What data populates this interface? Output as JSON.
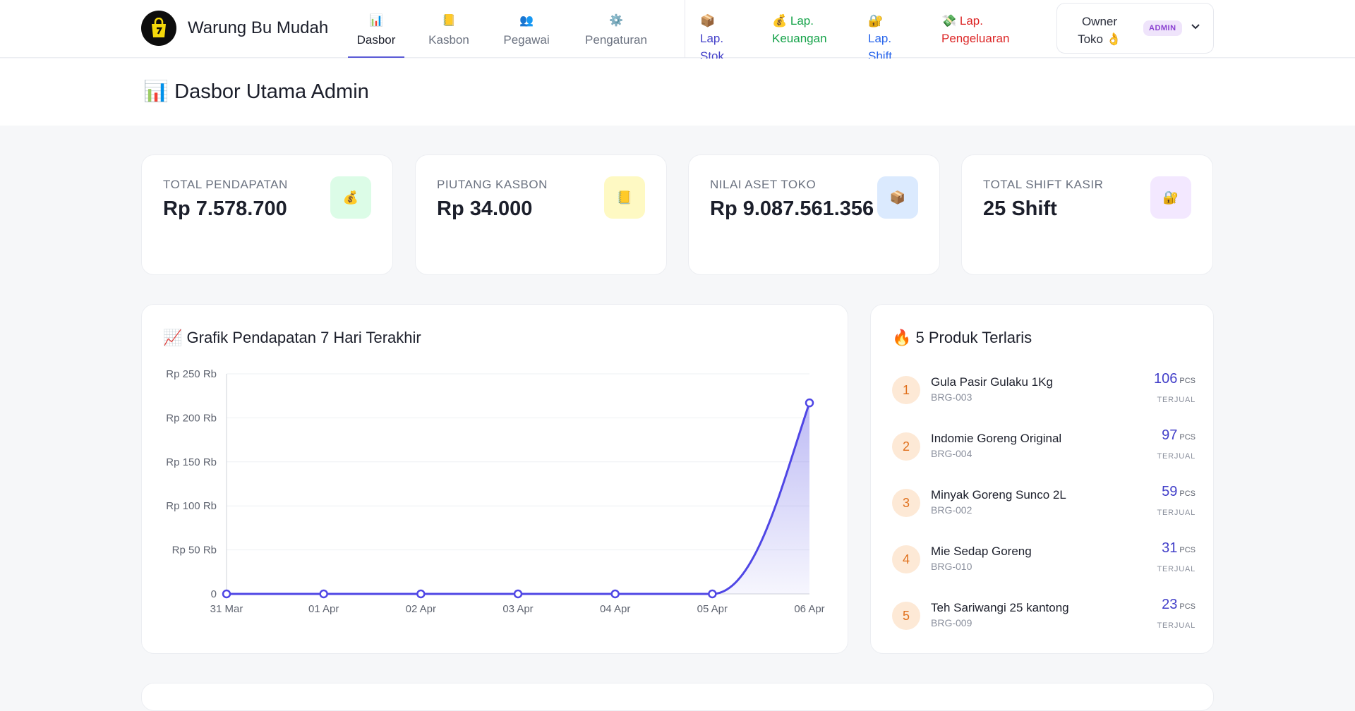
{
  "brand": {
    "name": "Warung Bu Mudah",
    "logo_icon": "shopping-bag-icon"
  },
  "nav": {
    "main": [
      {
        "label": "Dasbor",
        "icon": "📊",
        "active": true
      },
      {
        "label": "Kasbon",
        "icon": "📒",
        "active": false
      },
      {
        "label": "Pegawai",
        "icon": "👥",
        "active": false
      },
      {
        "label": "Pengaturan",
        "icon": "⚙️",
        "active": false
      }
    ],
    "reports": [
      {
        "line1": "📦 Lap.",
        "line2": "Stok",
        "color": "#4340c9"
      },
      {
        "line1": "💰 Lap.",
        "line2": "Keuangan",
        "color": "#16a34a"
      },
      {
        "line1": "🔐 Lap.",
        "line2": "Shift",
        "color": "#2563eb"
      },
      {
        "line1": "💸 Lap.",
        "line2": "Pengeluaran",
        "color": "#dc2626"
      }
    ]
  },
  "user": {
    "line1": "Owner",
    "line2": "Toko 👌",
    "role": "ADMIN",
    "chevron": "chevron-down-icon"
  },
  "page": {
    "title": "📊 Dasbor Utama Admin"
  },
  "stats": [
    {
      "label": "TOTAL PENDAPATAN",
      "value": "Rp 7.578.700",
      "icon": "💰",
      "icon_bg": "#dcfce7"
    },
    {
      "label": "PIUTANG KASBON",
      "value": "Rp 34.000",
      "icon": "📒",
      "icon_bg": "#fef9c3"
    },
    {
      "label": "NILAI ASET TOKO",
      "value": "Rp 9.087.561.356",
      "icon": "📦",
      "icon_bg": "#dbeafe"
    },
    {
      "label": "TOTAL SHIFT KASIR",
      "value": "25 Shift",
      "icon": "🔐",
      "icon_bg": "#f3e8ff"
    }
  ],
  "revenue_panel": {
    "title": "📈 Grafik Pendapatan 7 Hari Terakhir"
  },
  "chart_data": {
    "type": "area",
    "categories": [
      "31 Mar",
      "01 Apr",
      "02 Apr",
      "03 Apr",
      "04 Apr",
      "05 Apr",
      "06 Apr"
    ],
    "series": [
      {
        "values": [
          0,
          0,
          0,
          0,
          0,
          0,
          217000
        ],
        "color": "#4f46e5"
      }
    ],
    "ylim": [
      0,
      250000
    ],
    "y_ticks": [
      0,
      50000,
      100000,
      150000,
      200000,
      250000
    ],
    "y_tick_labels": [
      "0",
      "Rp 50 Rb",
      "Rp 100 Rb",
      "Rp 150 Rb",
      "Rp 200 Rb",
      "Rp 250 Rb"
    ],
    "grid": true,
    "legend": "none"
  },
  "top_products": {
    "title": "🔥 5 Produk Terlaris",
    "unit": "PCS",
    "sold_label": "TERJUAL",
    "items": [
      {
        "rank": "1",
        "name": "Gula Pasir Gulaku 1Kg",
        "code": "BRG-003",
        "qty": "106"
      },
      {
        "rank": "2",
        "name": "Indomie Goreng Original",
        "code": "BRG-004",
        "qty": "97"
      },
      {
        "rank": "3",
        "name": "Minyak Goreng Sunco 2L",
        "code": "BRG-002",
        "qty": "59"
      },
      {
        "rank": "4",
        "name": "Mie Sedap Goreng",
        "code": "BRG-010",
        "qty": "31"
      },
      {
        "rank": "5",
        "name": "Teh Sariwangi 25 kantong",
        "code": "BRG-009",
        "qty": "23"
      }
    ]
  }
}
